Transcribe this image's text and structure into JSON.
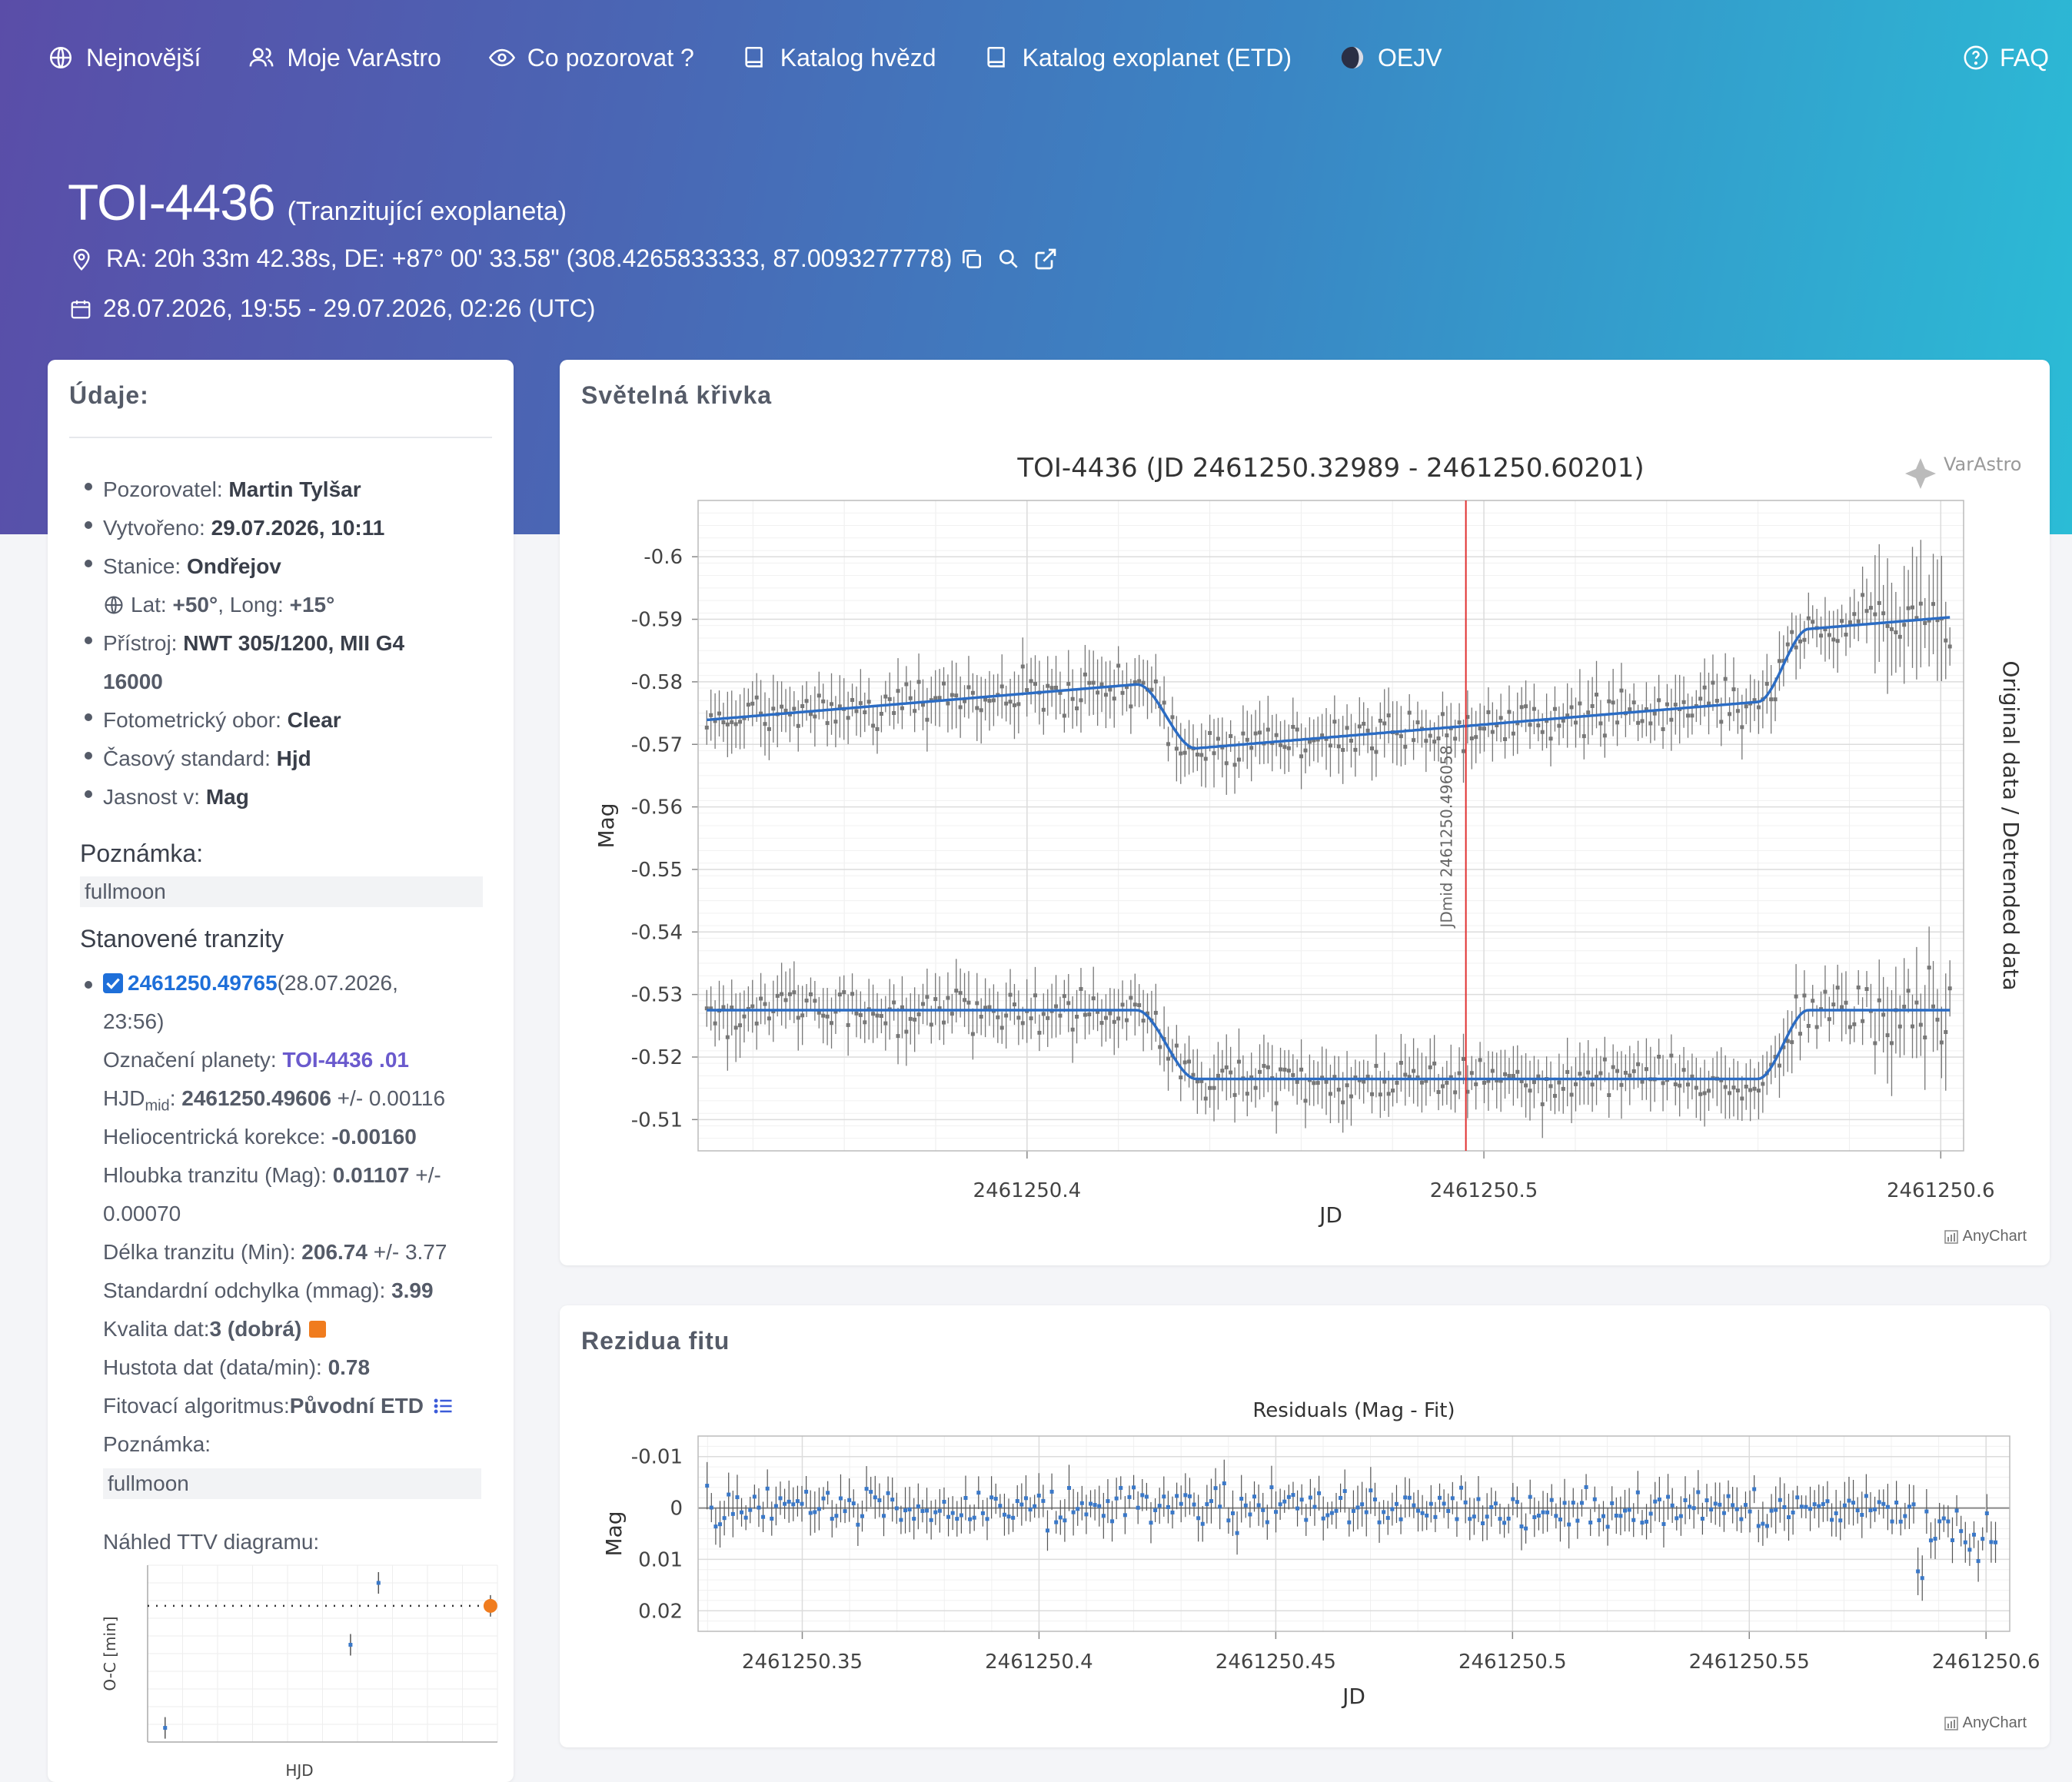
{
  "nav": {
    "items": [
      {
        "label": "Nejnovější",
        "icon": "globe-icon"
      },
      {
        "label": "Moje VarAstro",
        "icon": "users-icon"
      },
      {
        "label": "Co pozorovat ?",
        "icon": "eye-icon"
      },
      {
        "label": "Katalog hvězd",
        "icon": "book-icon"
      },
      {
        "label": "Katalog exoplanet (ETD)",
        "icon": "book-icon"
      },
      {
        "label": "OEJV",
        "icon": "moon-icon"
      }
    ],
    "faq": "FAQ"
  },
  "header": {
    "title": "TOI-4436",
    "subtitle": "(Tranzitující exoplaneta)",
    "coords": "RA: 20h 33m 42.38s, DE: +87° 00' 33.58\" (308.4265833333, 87.0093277778)",
    "date_range": "28.07.2026, 19:55 - 29.07.2026, 02:26 (UTC)"
  },
  "left": {
    "title": "Údaje:",
    "observer_label": "Pozorovatel: ",
    "observer": "Martin Tylšar",
    "created_label": "Vytvořeno: ",
    "created": "29.07.2026, 10:11",
    "station_label": "Stanice: ",
    "station": "Ondřejov",
    "lat_label": "Lat: ",
    "lat": "+50°",
    "long_label": ", Long: ",
    "long": "+15°",
    "instrument_label": "Přístroj: ",
    "instrument_1": "NWT 305/1200, MII G4",
    "instrument_2": "16000",
    "filter_label": "Fotometrický obor: ",
    "filter": "Clear",
    "timestd_label": "Časový standard: ",
    "timestd": "Hjd",
    "mag_label": "Jasnost v: ",
    "mag": "Mag",
    "note_heading": "Poznámka:",
    "note": "fullmoon",
    "transits_heading": "Stanovené tranzity",
    "transit_jd": "2461250.49765",
    "transit_date_1": " (28.07.2026,",
    "transit_date_2": "23:56)",
    "planet_label": "Označení planety: ",
    "planet": "TOI-4436 .01",
    "hjd_label": "HJD",
    "hjd_sub": "mid",
    "hjd_sep": ": ",
    "hjd_value": "2461250.49606",
    "hjd_err": " +/- 0.00116",
    "helio_label": "Heliocentrická korekce: ",
    "helio": "-0.00160",
    "depth_label": "Hloubka tranzitu (Mag): ",
    "depth": "0.01107",
    "depth_err_1": " +/-",
    "depth_err_2": "0.00070",
    "duration_label": "Délka tranzitu (Min): ",
    "duration": "206.74",
    "duration_err": " +/- 3.77",
    "std_label": "Standardní odchylka (mmag): ",
    "std": "3.99",
    "quality_label": "Kvalita dat: ",
    "quality": "3 (dobrá)",
    "quality_color": "#f07c1e",
    "density_label": "Hustota dat (data/min): ",
    "density": "0.78",
    "algo_label": "Fitovací algoritmus: ",
    "algo": "Původní ETD",
    "note2_heading": "Poznámka:",
    "note2": "fullmoon",
    "ttv_heading": "Náhled TTV diagramu:",
    "ttv_ylabel": "O-C [min]",
    "ttv_xlabel": "HJD"
  },
  "lightcurve": {
    "card_title": "Světelná křivka",
    "brand": "VarAstro",
    "anychart": "AnyChart"
  },
  "residuals": {
    "card_title": "Rezidua fitu",
    "anychart": "AnyChart"
  },
  "chart_data": [
    {
      "type": "scatter",
      "title": "TOI-4436 (JD 2461250.32989 - 2461250.60201)",
      "xlabel": "JD",
      "ylabel": "Mag",
      "ylabel_right": "Original data / Detrended data",
      "xlim": [
        2461250.328,
        2461250.605
      ],
      "ylim": [
        -0.505,
        -0.609
      ],
      "x_ticks": [
        "2461250.4",
        "2461250.5",
        "2461250.6"
      ],
      "y_ticks": [
        "-0.6",
        "-0.59",
        "-0.58",
        "-0.57",
        "-0.56",
        "-0.55",
        "-0.54",
        "-0.53",
        "-0.52",
        "-0.51"
      ],
      "marker_label": "JDmid 2461250.496058",
      "marker_x": 2461250.496058,
      "series": [
        {
          "role": "original",
          "baseline_start": -0.5738,
          "baseline_end": -0.5905,
          "ingress": [
            2461250.424,
            2461250.437
          ],
          "egress": [
            2461250.56,
            2461250.571
          ],
          "depth": 0.011
        },
        {
          "role": "detrended",
          "baseline": -0.5275,
          "ingress": [
            2461250.424,
            2461250.437
          ],
          "egress": [
            2461250.56,
            2461250.571
          ],
          "depth": 0.011
        }
      ],
      "color_fit": "#2b6cc4",
      "color_points": "#777777",
      "color_marker": "#e03030"
    },
    {
      "type": "scatter",
      "title": "Residuals (Mag - Fit)",
      "xlabel": "JD",
      "ylabel": "Mag",
      "xlim": [
        2461250.328,
        2461250.605
      ],
      "ylim": [
        0.024,
        -0.014
      ],
      "x_ticks": [
        "2461250.35",
        "2461250.4",
        "2461250.45",
        "2461250.5",
        "2461250.55",
        "2461250.6"
      ],
      "y_ticks": [
        "-0.01",
        "0",
        "0.01",
        "0.02"
      ],
      "color_points": "#3a78c8"
    },
    {
      "type": "scatter",
      "title": "",
      "xlabel": "HJD",
      "ylabel": "O-C [min]",
      "points": [
        {
          "x": 0.05,
          "y": 0.92,
          "highlight": false
        },
        {
          "x": 0.58,
          "y": 0.45,
          "highlight": false
        },
        {
          "x": 0.66,
          "y": 0.1,
          "highlight": false
        },
        {
          "x": 0.98,
          "y": 0.23,
          "highlight": true
        }
      ],
      "zero_level": 0.23,
      "highlight_color": "#f07c1e"
    }
  ]
}
